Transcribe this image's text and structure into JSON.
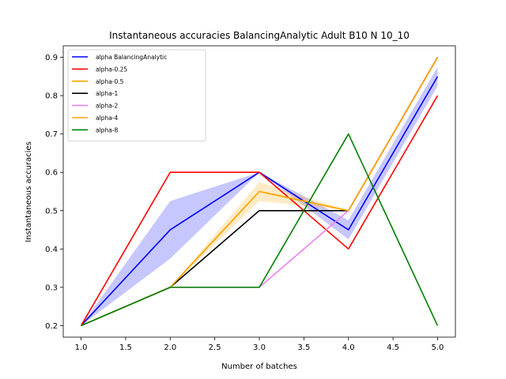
{
  "chart_data": {
    "type": "line",
    "title": "Instantaneous accuracies BalancingAnalytic Adult B10 N 10_10",
    "xlabel": "Number of batches",
    "ylabel": "Instantaneous accuracies",
    "xlim": [
      0.8,
      5.2
    ],
    "ylim": [
      0.17,
      0.93
    ],
    "xticks": [
      1.0,
      1.5,
      2.0,
      2.5,
      3.0,
      3.5,
      4.0,
      4.5,
      5.0
    ],
    "xtick_labels": [
      "1.0",
      "1.5",
      "2.0",
      "2.5",
      "3.0",
      "3.5",
      "4.0",
      "4.5",
      "5.0"
    ],
    "yticks": [
      0.2,
      0.3,
      0.4,
      0.5,
      0.6,
      0.7,
      0.8,
      0.9
    ],
    "ytick_labels": [
      "0.2",
      "0.3",
      "0.4",
      "0.5",
      "0.6",
      "0.7",
      "0.8",
      "0.9"
    ],
    "grid": false,
    "legend_position": "top-left",
    "x": [
      1,
      2,
      3,
      4,
      5
    ],
    "series": [
      {
        "name": "alpha BalancingAnalytic",
        "color": "#0000ff",
        "values": [
          0.2,
          0.45,
          0.6,
          0.45,
          0.85
        ],
        "band_lower": [
          0.2,
          0.375,
          0.6,
          0.425,
          0.825
        ],
        "band_upper": [
          0.2,
          0.525,
          0.6,
          0.475,
          0.875
        ],
        "band_color": "#0000ff"
      },
      {
        "name": "alpha-0.25",
        "color": "#ff0000",
        "values": [
          0.2,
          0.6,
          0.6,
          0.4,
          0.8
        ]
      },
      {
        "name": "alpha-0.5",
        "color": "#ffa500",
        "values": [
          0.2,
          0.3,
          0.55,
          0.5,
          0.9
        ],
        "band_lower": [
          0.2,
          0.3,
          0.525,
          0.5,
          0.9
        ],
        "band_upper": [
          0.2,
          0.3,
          0.575,
          0.5,
          0.9
        ],
        "band_color": "#ffa500"
      },
      {
        "name": "alpha-1",
        "color": "#000000",
        "values": [
          0.2,
          0.3,
          0.5,
          0.5,
          0.9
        ]
      },
      {
        "name": "alpha-2",
        "color": "#ee82ee",
        "values": [
          0.2,
          0.3,
          0.3,
          0.5,
          0.9
        ]
      },
      {
        "name": "alpha-4",
        "color": "#ffa500",
        "values": [
          0.2,
          0.3,
          0.55,
          0.5,
          0.9
        ]
      },
      {
        "name": "alpha-8",
        "color": "#008000",
        "values": [
          0.2,
          0.3,
          0.3,
          0.7,
          0.2
        ]
      }
    ]
  }
}
